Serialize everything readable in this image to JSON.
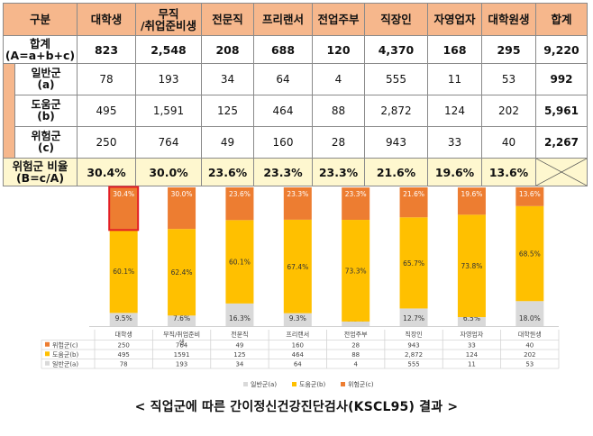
{
  "table": {
    "header_row_label": "구분",
    "columns": [
      "대학생",
      "무직\n/취업준비생",
      "전문직",
      "프리랜서",
      "전업주부",
      "직장인",
      "자영업자",
      "대학원생",
      "합계"
    ],
    "rows": [
      {
        "label": "합계\n(A=a+b+c)",
        "values": [
          "823",
          "2,548",
          "208",
          "688",
          "120",
          "4,370",
          "168",
          "295",
          "9,220"
        ]
      },
      {
        "label": "일반군\n(a)",
        "values": [
          "78",
          "193",
          "34",
          "64",
          "4",
          "555",
          "11",
          "53",
          "992"
        ]
      },
      {
        "label": "도움군\n(b)",
        "values": [
          "495",
          "1,591",
          "125",
          "464",
          "88",
          "2,872",
          "124",
          "202",
          "5,961"
        ]
      },
      {
        "label": "위험군\n(c)",
        "values": [
          "250",
          "764",
          "49",
          "160",
          "28",
          "943",
          "33",
          "40",
          "2,267"
        ]
      },
      {
        "label": "위험군 비율\n(B=c/A)",
        "values": [
          "30.4%",
          "30.0%",
          "23.6%",
          "23.3%",
          "23.3%",
          "21.6%",
          "19.6%",
          "13.6%",
          ""
        ]
      }
    ]
  },
  "chart_data": {
    "type": "bar",
    "stacked": "100%",
    "categories": [
      "대학생",
      "무직/취업준비\n생",
      "전문직",
      "프리랜서",
      "전업주부",
      "직장인",
      "자영업자",
      "대학원생"
    ],
    "series": [
      {
        "name": "일반군(a)",
        "color": "#d9d9d9",
        "pct": [
          9.5,
          7.6,
          16.3,
          9.3,
          3.3,
          12.7,
          6.5,
          18.0
        ],
        "counts": [
          "78",
          "193",
          "34",
          "64",
          "4",
          "555",
          "11",
          "53"
        ]
      },
      {
        "name": "도움군(b)",
        "color": "#ffc000",
        "pct": [
          60.1,
          62.4,
          60.1,
          67.4,
          73.3,
          65.7,
          73.8,
          68.5
        ],
        "counts": [
          "495",
          "1591",
          "125",
          "464",
          "88",
          "2,872",
          "124",
          "202"
        ]
      },
      {
        "name": "위험군(c)",
        "color": "#ed7d31",
        "pct": [
          30.4,
          30.0,
          23.6,
          23.3,
          23.3,
          21.6,
          19.6,
          13.6
        ],
        "counts": [
          "250",
          "764",
          "49",
          "160",
          "28",
          "943",
          "33",
          "40"
        ]
      }
    ],
    "table_row_order": [
      "위험군(c)",
      "도움군(b)",
      "일반군(a)"
    ],
    "legend_order": [
      "일반군(a)",
      "도움군(b)",
      "위험군(c)"
    ],
    "highlighted_category": "대학생",
    "highlight_color": "#e31e24",
    "value_labels": [
      "percent"
    ]
  },
  "caption": "< 직업군에 따른 간이정신건강진단검사(KSCL95) 결과 >"
}
